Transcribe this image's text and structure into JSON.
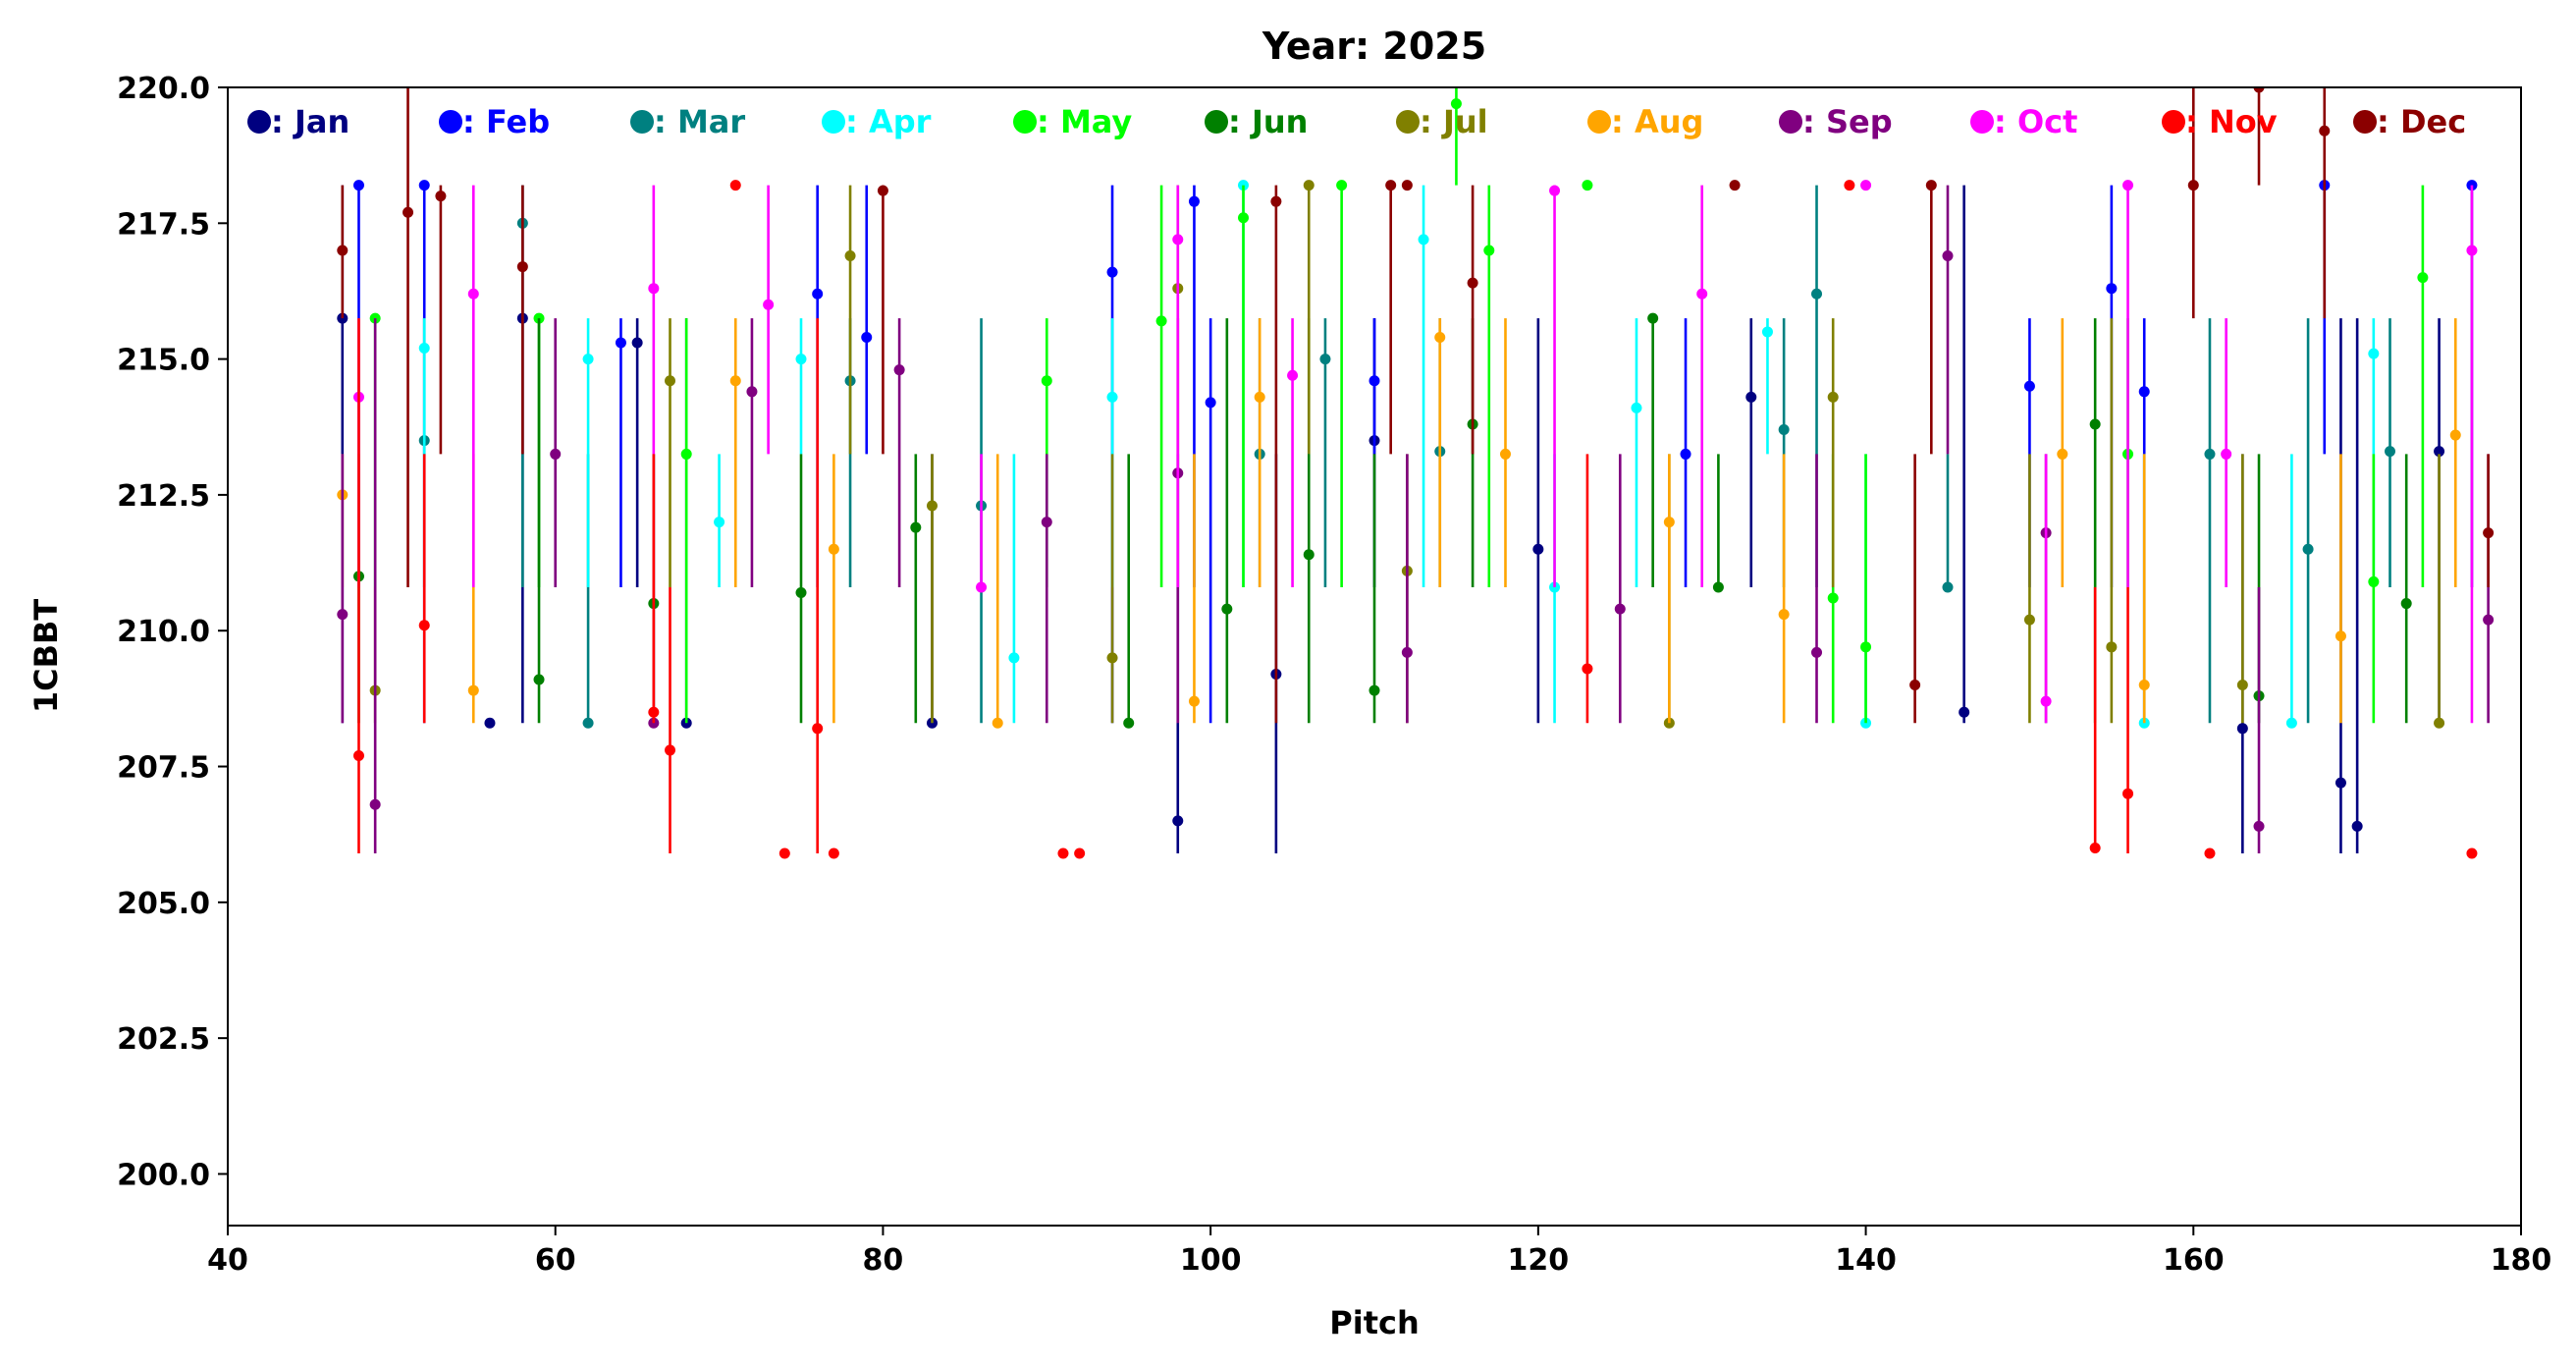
{
  "chart_data": {
    "type": "scatter",
    "title": "Year: 2025",
    "xlabel": "Pitch",
    "ylabel": "1CBBT",
    "xlim": [
      40,
      180
    ],
    "ylim": [
      199.05,
      220
    ],
    "xticks": [
      "40",
      "60",
      "80",
      "100",
      "120",
      "140",
      "160",
      "180"
    ],
    "yticks": [
      "200.0",
      "202.5",
      "205.0",
      "207.5",
      "210.0",
      "212.5",
      "215.0",
      "217.5",
      "220.0"
    ],
    "grid": false,
    "legend_placement": "top (inside, single row)",
    "point_format": "[pitch, value, error_min, error_max]",
    "series": [
      {
        "name": ": Jan",
        "color": "#000080",
        "points": [
          [
            47,
            215.75,
            208.3,
            218.2
          ],
          [
            56,
            208.3,
            208.3,
            208.3
          ],
          [
            58,
            215.75,
            208.3,
            218.2
          ],
          [
            65,
            215.3,
            210.8,
            215.75
          ],
          [
            68,
            208.3,
            208.3,
            215.75
          ],
          [
            83,
            208.3,
            208.3,
            213.25
          ],
          [
            98,
            206.5,
            205.9,
            213.25
          ],
          [
            104,
            209.2,
            205.9,
            213.25
          ],
          [
            110,
            213.5,
            210.8,
            215.75
          ],
          [
            120,
            211.5,
            208.3,
            215.75
          ],
          [
            133,
            214.3,
            210.8,
            215.75
          ],
          [
            146,
            208.5,
            208.3,
            218.2
          ],
          [
            163,
            208.2,
            205.9,
            213.25
          ],
          [
            169,
            207.2,
            205.9,
            215.75
          ],
          [
            170,
            206.4,
            205.9,
            215.75
          ],
          [
            175,
            213.3,
            208.3,
            215.75
          ]
        ]
      },
      {
        "name": ": Feb",
        "color": "#0000ff",
        "points": [
          [
            48,
            218.2,
            210.8,
            218.2
          ],
          [
            52,
            218.2,
            208.3,
            218.2
          ],
          [
            64,
            215.3,
            210.8,
            215.75
          ],
          [
            76,
            216.2,
            210.8,
            218.2
          ],
          [
            79,
            215.4,
            213.25,
            218.2
          ],
          [
            94,
            216.6,
            208.3,
            218.2
          ],
          [
            99,
            217.9,
            210.8,
            218.2
          ],
          [
            100,
            214.2,
            208.3,
            215.75
          ],
          [
            110,
            214.6,
            213.25,
            215.75
          ],
          [
            129,
            213.25,
            210.8,
            215.75
          ],
          [
            150,
            214.5,
            210.8,
            215.75
          ],
          [
            155,
            216.3,
            210.8,
            218.2
          ],
          [
            157,
            214.4,
            208.3,
            215.75
          ],
          [
            168,
            218.2,
            213.25,
            218.2
          ],
          [
            177,
            218.2,
            210.8,
            218.2
          ]
        ]
      },
      {
        "name": ": Mar",
        "color": "#008080",
        "points": [
          [
            52,
            213.5,
            210.8,
            215.75
          ],
          [
            58,
            217.5,
            210.8,
            218.2
          ],
          [
            62,
            208.3,
            208.3,
            213.25
          ],
          [
            78,
            214.6,
            210.8,
            215.75
          ],
          [
            86,
            212.3,
            208.3,
            215.75
          ],
          [
            103,
            213.25,
            210.8,
            215.75
          ],
          [
            107,
            215.0,
            210.8,
            215.75
          ],
          [
            114,
            213.3,
            210.8,
            215.75
          ],
          [
            135,
            213.7,
            210.8,
            215.75
          ],
          [
            137,
            216.2,
            210.8,
            218.2
          ],
          [
            145,
            210.8,
            210.8,
            213.25
          ],
          [
            161,
            213.25,
            208.3,
            215.75
          ],
          [
            167,
            211.5,
            208.3,
            215.75
          ],
          [
            172,
            213.3,
            210.8,
            215.75
          ]
        ]
      },
      {
        "name": ": Apr",
        "color": "#00ffff",
        "points": [
          [
            52,
            215.2,
            213.25,
            215.75
          ],
          [
            62,
            215.0,
            210.8,
            215.75
          ],
          [
            70,
            212.0,
            210.8,
            213.25
          ],
          [
            75,
            215.0,
            213.25,
            215.75
          ],
          [
            88,
            209.5,
            208.3,
            213.25
          ],
          [
            94,
            214.3,
            210.8,
            215.75
          ],
          [
            102,
            218.2,
            210.8,
            218.2
          ],
          [
            113,
            217.2,
            210.8,
            218.2
          ],
          [
            121,
            210.8,
            208.3,
            213.25
          ],
          [
            126,
            214.1,
            210.8,
            215.75
          ],
          [
            134,
            215.5,
            213.25,
            215.75
          ],
          [
            140,
            208.3,
            208.3,
            213.25
          ],
          [
            157,
            208.3,
            208.3,
            213.25
          ],
          [
            166,
            208.3,
            208.3,
            213.25
          ],
          [
            171,
            215.1,
            210.8,
            215.75
          ]
        ]
      },
      {
        "name": ": May",
        "color": "#00ff00",
        "points": [
          [
            49,
            215.75,
            210.8,
            215.75
          ],
          [
            59,
            215.75,
            210.8,
            215.75
          ],
          [
            68,
            213.25,
            208.3,
            215.75
          ],
          [
            90,
            214.6,
            210.8,
            215.75
          ],
          [
            97,
            215.7,
            210.8,
            218.2
          ],
          [
            102,
            217.6,
            210.8,
            218.2
          ],
          [
            108,
            218.2,
            210.8,
            218.2
          ],
          [
            115,
            219.7,
            218.2,
            220
          ],
          [
            117,
            217.0,
            210.8,
            218.2
          ],
          [
            123,
            218.2,
            218.2,
            218.2
          ],
          [
            138,
            210.6,
            208.3,
            213.25
          ],
          [
            140,
            209.7,
            208.3,
            213.25
          ],
          [
            156,
            213.25,
            210.8,
            215.75
          ],
          [
            171,
            210.9,
            208.3,
            213.25
          ],
          [
            174,
            216.5,
            210.8,
            218.2
          ]
        ]
      },
      {
        "name": ": Jun",
        "color": "#008000",
        "points": [
          [
            48,
            211.0,
            208.3,
            213.25
          ],
          [
            59,
            209.1,
            208.3,
            215.75
          ],
          [
            66,
            210.5,
            208.3,
            213.25
          ],
          [
            75,
            210.7,
            208.3,
            213.25
          ],
          [
            82,
            211.9,
            208.3,
            213.25
          ],
          [
            95,
            208.3,
            208.3,
            213.25
          ],
          [
            101,
            210.4,
            208.3,
            215.75
          ],
          [
            106,
            211.4,
            208.3,
            215.75
          ],
          [
            110,
            208.9,
            208.3,
            213.25
          ],
          [
            116,
            213.8,
            210.8,
            215.75
          ],
          [
            127,
            215.75,
            210.8,
            215.75
          ],
          [
            131,
            210.8,
            210.8,
            213.25
          ],
          [
            154,
            213.8,
            208.3,
            215.75
          ],
          [
            164,
            208.8,
            208.3,
            213.25
          ],
          [
            173,
            210.5,
            208.3,
            213.25
          ]
        ]
      },
      {
        "name": ": Jul",
        "color": "#808000",
        "points": [
          [
            49,
            208.9,
            208.3,
            210.8
          ],
          [
            67,
            214.6,
            210.8,
            215.75
          ],
          [
            78,
            216.9,
            213.25,
            218.2
          ],
          [
            83,
            212.3,
            208.3,
            213.25
          ],
          [
            94,
            209.5,
            208.3,
            213.25
          ],
          [
            98,
            216.3,
            210.8,
            218.2
          ],
          [
            106,
            218.2,
            213.25,
            218.2
          ],
          [
            112,
            211.1,
            208.3,
            213.25
          ],
          [
            128,
            208.3,
            208.3,
            213.25
          ],
          [
            138,
            214.3,
            210.8,
            215.75
          ],
          [
            150,
            210.2,
            208.3,
            213.25
          ],
          [
            155,
            209.7,
            208.3,
            215.75
          ],
          [
            163,
            209.0,
            208.3,
            213.25
          ],
          [
            175,
            208.3,
            208.3,
            213.25
          ]
        ]
      },
      {
        "name": ": Aug",
        "color": "#ffa500",
        "points": [
          [
            47,
            212.5,
            210.8,
            213.25
          ],
          [
            55,
            208.9,
            208.3,
            213.25
          ],
          [
            71,
            214.6,
            210.8,
            215.75
          ],
          [
            77,
            211.5,
            208.3,
            213.25
          ],
          [
            87,
            208.3,
            208.3,
            213.25
          ],
          [
            99,
            208.7,
            208.3,
            213.25
          ],
          [
            103,
            214.3,
            210.8,
            215.75
          ],
          [
            114,
            215.4,
            210.8,
            215.75
          ],
          [
            118,
            213.25,
            210.8,
            215.75
          ],
          [
            128,
            212.0,
            208.3,
            213.25
          ],
          [
            135,
            210.3,
            208.3,
            213.25
          ],
          [
            152,
            213.25,
            210.8,
            215.75
          ],
          [
            157,
            209.0,
            208.3,
            213.25
          ],
          [
            169,
            209.9,
            208.3,
            213.25
          ],
          [
            176,
            213.6,
            210.8,
            215.75
          ]
        ]
      },
      {
        "name": ": Sep",
        "color": "#800080",
        "points": [
          [
            47,
            210.3,
            208.3,
            213.25
          ],
          [
            49,
            206.8,
            205.9,
            215.75
          ],
          [
            60,
            213.25,
            210.8,
            215.75
          ],
          [
            66,
            208.3,
            208.3,
            213.25
          ],
          [
            72,
            214.4,
            210.8,
            215.75
          ],
          [
            81,
            214.8,
            210.8,
            215.75
          ],
          [
            90,
            212.0,
            208.3,
            213.25
          ],
          [
            98,
            212.9,
            208.3,
            215.75
          ],
          [
            112,
            209.6,
            208.3,
            213.25
          ],
          [
            125,
            210.4,
            208.3,
            213.25
          ],
          [
            137,
            209.6,
            208.3,
            213.25
          ],
          [
            145,
            216.9,
            213.25,
            218.2
          ],
          [
            151,
            211.8,
            208.3,
            213.25
          ],
          [
            164,
            206.4,
            205.9,
            210.8
          ],
          [
            178,
            210.2,
            208.3,
            213.25
          ]
        ]
      },
      {
        "name": ": Oct",
        "color": "#ff00ff",
        "points": [
          [
            48,
            214.3,
            210.8,
            215.75
          ],
          [
            55,
            216.2,
            210.8,
            218.2
          ],
          [
            66,
            216.3,
            213.25,
            218.2
          ],
          [
            73,
            216.0,
            213.25,
            218.2
          ],
          [
            86,
            210.8,
            210.8,
            213.25
          ],
          [
            98,
            217.2,
            210.8,
            218.2
          ],
          [
            105,
            214.7,
            210.8,
            215.75
          ],
          [
            121,
            218.1,
            210.8,
            218.2
          ],
          [
            130,
            216.2,
            210.8,
            218.2
          ],
          [
            140,
            218.2,
            218.2,
            218.2
          ],
          [
            151,
            208.7,
            208.3,
            213.25
          ],
          [
            156,
            218.2,
            210.8,
            218.2
          ],
          [
            162,
            213.25,
            210.8,
            215.75
          ],
          [
            177,
            217.0,
            208.3,
            218.2
          ]
        ]
      },
      {
        "name": ": Nov",
        "color": "#ff0000",
        "points": [
          [
            48,
            207.7,
            205.9,
            215.75
          ],
          [
            52,
            210.1,
            208.3,
            213.25
          ],
          [
            66,
            208.5,
            208.3,
            213.25
          ],
          [
            67,
            207.8,
            205.9,
            210.8
          ],
          [
            71,
            218.2,
            218.2,
            218.2
          ],
          [
            74,
            205.9,
            205.9,
            205.9
          ],
          [
            76,
            208.2,
            205.9,
            215.75
          ],
          [
            77,
            205.9,
            205.9,
            205.9
          ],
          [
            91,
            205.9,
            205.9,
            205.9
          ],
          [
            92,
            205.9,
            205.9,
            205.9
          ],
          [
            123,
            209.3,
            208.3,
            213.25
          ],
          [
            139,
            218.2,
            218.2,
            218.2
          ],
          [
            154,
            206.0,
            205.9,
            210.8
          ],
          [
            156,
            207.0,
            205.9,
            210.8
          ],
          [
            161,
            205.9,
            205.9,
            205.9
          ],
          [
            177,
            205.9,
            205.9,
            205.9
          ]
        ]
      },
      {
        "name": ": Dec",
        "color": "#8b0000",
        "points": [
          [
            47,
            217.0,
            215.75,
            218.2
          ],
          [
            51,
            217.7,
            210.8,
            220
          ],
          [
            53,
            218.0,
            213.25,
            218.2
          ],
          [
            58,
            216.7,
            213.25,
            218.2
          ],
          [
            80,
            218.1,
            213.25,
            218.2
          ],
          [
            104,
            217.9,
            208.3,
            218.2
          ],
          [
            111,
            218.2,
            213.25,
            218.2
          ],
          [
            112,
            218.2,
            218.2,
            218.2
          ],
          [
            116,
            216.4,
            213.25,
            218.2
          ],
          [
            132,
            218.2,
            218.2,
            218.2
          ],
          [
            143,
            209.0,
            208.3,
            213.25
          ],
          [
            144,
            218.2,
            213.25,
            218.2
          ],
          [
            160,
            218.2,
            215.75,
            220
          ],
          [
            164,
            220,
            218.2,
            220
          ],
          [
            168,
            219.2,
            215.75,
            220
          ],
          [
            178,
            211.8,
            210.8,
            213.25
          ]
        ]
      }
    ]
  }
}
